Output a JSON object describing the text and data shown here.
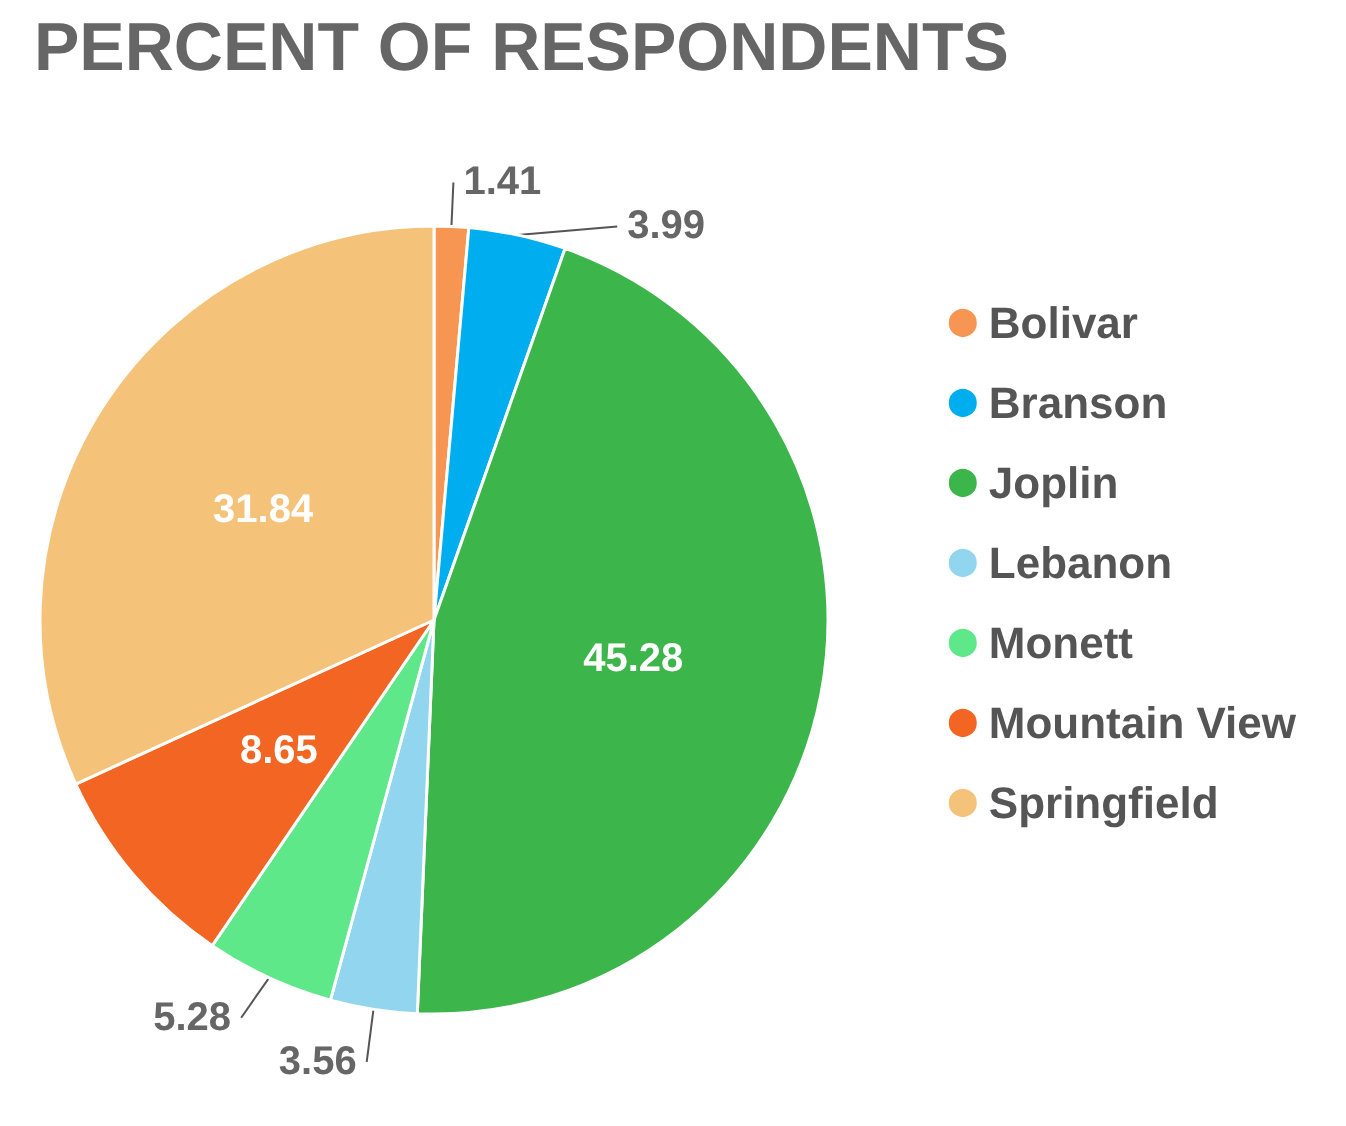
{
  "chart_data": {
    "type": "pie",
    "title": "PERCENT OF RESPONDENTS",
    "categories": [
      "Bolivar",
      "Branson",
      "Joplin",
      "Lebanon",
      "Monett",
      "Mountain View",
      "Springfield"
    ],
    "values": [
      1.41,
      3.99,
      45.28,
      3.56,
      5.28,
      8.65,
      31.84
    ],
    "colors": [
      "#f79552",
      "#00aeef",
      "#3cb54a",
      "#92d5ee",
      "#5ee88a",
      "#f26522",
      "#f5c27a"
    ],
    "data_labels": true,
    "legend": "right"
  }
}
